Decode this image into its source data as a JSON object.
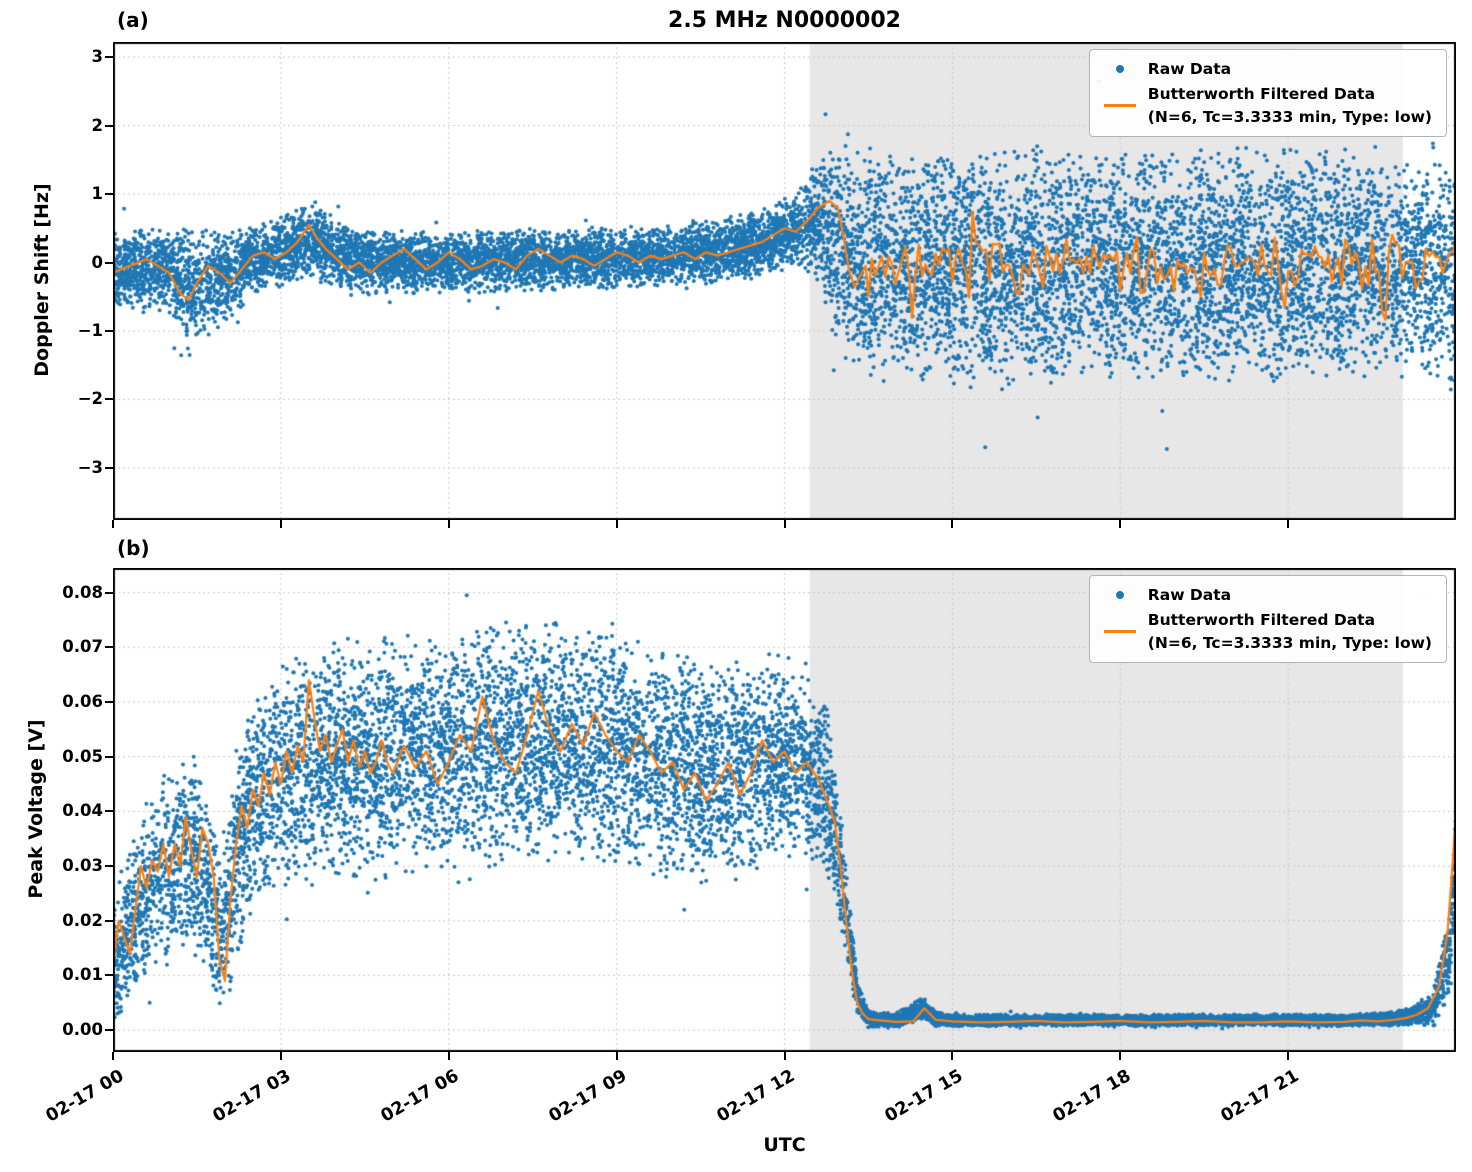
{
  "figure": {
    "title": "2.5 MHz N0000002",
    "panel_a_tag": "(a)",
    "panel_b_tag": "(b)"
  },
  "legend": {
    "raw_label": "Raw Data",
    "filtered_label": "Butterworth Filtered Data",
    "filtered_sublabel": "(N=6, Tc=3.3333 min, Type: low)"
  },
  "colors": {
    "raw": "#1f77b4",
    "filtered": "#ff7f0e",
    "shade": "#e7e7e7",
    "grid": "#c9c9c9",
    "axis": "#000000"
  },
  "chart_data": [
    {
      "type": "scatter+line",
      "panel": "a",
      "ylabel": "Doppler Shift [Hz]",
      "xlim": [
        0,
        24
      ],
      "ylim": [
        -3.76,
        3.22
      ],
      "yticks": [
        -3,
        -2,
        -1,
        0,
        1,
        2,
        3
      ],
      "ytick_labels": [
        "−3",
        "−2",
        "−1",
        "0",
        "1",
        "2",
        "3"
      ],
      "xticks": [
        0,
        3,
        6,
        9,
        12,
        15,
        18,
        21
      ],
      "shaded_region_hours": [
        12.45,
        23.05
      ],
      "grid": "dotted",
      "legend_position": "upper right",
      "series": [
        {
          "name": "Raw Data",
          "type": "scatter",
          "color": "#1f77b4",
          "seed": 42,
          "n_points": 12000,
          "outlier_frac": 0.025,
          "outlier_scale": 1.1,
          "envelope": {
            "x": [
              0,
              1.0,
              1.35,
              2.0,
              2.6,
              3.5,
              4.5,
              6,
              8,
              10,
              11.5,
              12.2,
              12.6,
              12.9,
              13.2,
              14,
              16,
              18,
              20,
              22,
              23,
              23.5,
              24
            ],
            "center": [
              -0.1,
              -0.1,
              -0.35,
              -0.2,
              0.05,
              0.3,
              0.0,
              0.0,
              0.05,
              0.1,
              0.25,
              0.5,
              0.65,
              0.3,
              0.0,
              -0.05,
              -0.05,
              -0.05,
              -0.05,
              -0.05,
              -0.05,
              -0.1,
              -0.2
            ],
            "halfwidth": [
              0.5,
              0.55,
              0.75,
              0.6,
              0.45,
              0.5,
              0.42,
              0.4,
              0.42,
              0.4,
              0.45,
              0.5,
              0.8,
              1.3,
              1.5,
              1.55,
              1.55,
              1.55,
              1.55,
              1.55,
              1.5,
              1.4,
              1.5
            ]
          }
        },
        {
          "name": "Butterworth Filtered Data (N=6, Tc=3.3333 min, Type: low)",
          "type": "line",
          "color": "#ff7f0e",
          "seed": 7,
          "line_x": [
            0,
            0.2,
            0.4,
            0.6,
            0.8,
            1.0,
            1.2,
            1.35,
            1.5,
            1.7,
            1.9,
            2.1,
            2.3,
            2.5,
            2.7,
            2.9,
            3.1,
            3.3,
            3.5,
            3.65,
            3.8,
            4.0,
            4.2,
            4.4,
            4.6,
            4.8,
            5.0,
            5.2,
            5.4,
            5.6,
            5.8,
            6.0,
            6.2,
            6.4,
            6.6,
            6.8,
            7.0,
            7.2,
            7.4,
            7.6,
            7.8,
            8.0,
            8.2,
            8.4,
            8.6,
            8.8,
            9.0,
            9.2,
            9.4,
            9.6,
            9.8,
            10.0,
            10.2,
            10.4,
            10.6,
            10.8,
            11.0,
            11.2,
            11.4,
            11.6,
            11.8,
            12.0,
            12.2,
            12.4,
            12.6,
            12.8,
            12.95,
            13.05,
            13.15,
            13.25,
            13.35,
            13.45
          ],
          "line_y": [
            -0.15,
            -0.08,
            -0.02,
            0.05,
            -0.05,
            -0.15,
            -0.45,
            -0.55,
            -0.3,
            -0.05,
            -0.15,
            -0.3,
            -0.1,
            0.1,
            0.15,
            0.05,
            0.15,
            0.3,
            0.55,
            0.35,
            0.2,
            0.05,
            -0.1,
            0.0,
            -0.15,
            0.0,
            0.1,
            0.2,
            0.05,
            -0.1,
            0.0,
            0.15,
            0.05,
            -0.1,
            -0.05,
            0.05,
            0.0,
            -0.1,
            0.1,
            0.2,
            0.1,
            0.0,
            0.1,
            0.05,
            -0.05,
            0.05,
            0.15,
            0.1,
            0.0,
            0.1,
            0.05,
            0.1,
            0.15,
            0.05,
            0.15,
            0.1,
            0.15,
            0.2,
            0.25,
            0.3,
            0.4,
            0.5,
            0.45,
            0.6,
            0.8,
            0.9,
            0.8,
            0.4,
            -0.1,
            -0.35,
            -0.2,
            -0.05
          ],
          "noisy_tail": {
            "from": 13.5,
            "to": 24,
            "step": 0.06,
            "mean": -0.05,
            "amp": 0.3,
            "spike_prob": 0.05,
            "spike_amp": 0.55
          }
        }
      ]
    },
    {
      "type": "scatter+line",
      "panel": "b",
      "ylabel": "Peak Voltage [V]",
      "xlabel": "UTC",
      "xlim": [
        0,
        24
      ],
      "ylim": [
        -0.004,
        0.0845
      ],
      "yticks": [
        0,
        0.01,
        0.02,
        0.03,
        0.04,
        0.05,
        0.06,
        0.07,
        0.08
      ],
      "ytick_labels": [
        "0.00",
        "0.01",
        "0.02",
        "0.03",
        "0.04",
        "0.05",
        "0.06",
        "0.07",
        "0.08"
      ],
      "xticks": [
        0,
        3,
        6,
        9,
        12,
        15,
        18,
        21
      ],
      "xtick_labels": [
        "02-17 00",
        "02-17 03",
        "02-17 06",
        "02-17 09",
        "02-17 12",
        "02-17 15",
        "02-17 18",
        "02-17 21"
      ],
      "shaded_region_hours": [
        12.45,
        23.05
      ],
      "grid": "dotted",
      "legend_position": "upper right",
      "series": [
        {
          "name": "Raw Data",
          "type": "scatter",
          "color": "#1f77b4",
          "seed": 11,
          "n_points": 12000,
          "outlier_frac": 0.04,
          "outlier_scale": 0.6,
          "clamp": [
            0.0003,
            0.0795
          ],
          "envelope": {
            "x": [
              0,
              0.3,
              0.7,
              1.0,
              1.5,
              1.9,
              2.1,
              2.5,
              3.0,
              4,
              5,
              6,
              7,
              8,
              9,
              10,
              11,
              12,
              12.5,
              12.8,
              13.0,
              13.15,
              13.3,
              13.5,
              14,
              14.5,
              14.7,
              15,
              16,
              18,
              20,
              22,
              22.8,
              23.2,
              23.6,
              23.9,
              24
            ],
            "center": [
              0.012,
              0.018,
              0.028,
              0.03,
              0.032,
              0.018,
              0.025,
              0.042,
              0.046,
              0.05,
              0.05,
              0.051,
              0.052,
              0.053,
              0.052,
              0.048,
              0.047,
              0.05,
              0.048,
              0.042,
              0.03,
              0.018,
              0.006,
              0.002,
              0.0018,
              0.004,
              0.002,
              0.0018,
              0.0018,
              0.0018,
              0.0018,
              0.0018,
              0.002,
              0.0025,
              0.004,
              0.015,
              0.035
            ],
            "halfwidth": [
              0.01,
              0.013,
              0.016,
              0.016,
              0.017,
              0.013,
              0.016,
              0.018,
              0.019,
              0.02,
              0.02,
              0.02,
              0.02,
              0.02,
              0.02,
              0.019,
              0.018,
              0.017,
              0.016,
              0.014,
              0.01,
              0.007,
              0.003,
              0.0015,
              0.0012,
              0.002,
              0.0012,
              0.001,
              0.001,
              0.001,
              0.001,
              0.001,
              0.0012,
              0.0015,
              0.003,
              0.008,
              0.01
            ]
          }
        },
        {
          "name": "Butterworth Filtered Data (N=6, Tc=3.3333 min, Type: low)",
          "type": "line",
          "color": "#ff7f0e",
          "seed": 13,
          "line_x": [
            0,
            0.1,
            0.2,
            0.3,
            0.4,
            0.5,
            0.6,
            0.7,
            0.8,
            0.9,
            1.0,
            1.1,
            1.2,
            1.3,
            1.4,
            1.5,
            1.6,
            1.7,
            1.8,
            1.9,
            2.0,
            2.1,
            2.2,
            2.3,
            2.4,
            2.5,
            2.6,
            2.7,
            2.8,
            2.9,
            3.0,
            3.1,
            3.2,
            3.3,
            3.4,
            3.5,
            3.6,
            3.7,
            3.8,
            3.9,
            4.0,
            4.1,
            4.2,
            4.3,
            4.4,
            4.5,
            4.6,
            4.7,
            4.8,
            4.9,
            5.0,
            5.2,
            5.4,
            5.6,
            5.8,
            6.0,
            6.2,
            6.4,
            6.6,
            6.8,
            7.0,
            7.2,
            7.4,
            7.6,
            7.8,
            8.0,
            8.2,
            8.4,
            8.6,
            8.8,
            9.0,
            9.2,
            9.4,
            9.6,
            9.8,
            10.0,
            10.2,
            10.4,
            10.6,
            10.8,
            11.0,
            11.2,
            11.4,
            11.6,
            11.8,
            12.0,
            12.2,
            12.4,
            12.6,
            12.8,
            12.9,
            13.0,
            13.1,
            13.2,
            13.3,
            13.4,
            13.5,
            13.7,
            14.0,
            14.3,
            14.5,
            14.7,
            15.0,
            15.5,
            16.0,
            16.5,
            17.0,
            17.5,
            18.0,
            18.5,
            19.0,
            19.5,
            20.0,
            20.5,
            21.0,
            21.5,
            22.0,
            22.3,
            22.6,
            22.9,
            23.1,
            23.3,
            23.5,
            23.7,
            23.85,
            23.95,
            24.0
          ],
          "line_y": [
            0.012,
            0.02,
            0.017,
            0.014,
            0.022,
            0.03,
            0.026,
            0.031,
            0.029,
            0.034,
            0.028,
            0.034,
            0.03,
            0.039,
            0.033,
            0.028,
            0.037,
            0.034,
            0.028,
            0.013,
            0.009,
            0.024,
            0.034,
            0.041,
            0.037,
            0.044,
            0.041,
            0.047,
            0.043,
            0.049,
            0.045,
            0.051,
            0.047,
            0.052,
            0.049,
            0.064,
            0.057,
            0.051,
            0.054,
            0.049,
            0.052,
            0.055,
            0.049,
            0.053,
            0.048,
            0.051,
            0.047,
            0.049,
            0.053,
            0.049,
            0.047,
            0.052,
            0.048,
            0.051,
            0.045,
            0.049,
            0.054,
            0.051,
            0.061,
            0.053,
            0.049,
            0.047,
            0.054,
            0.062,
            0.055,
            0.051,
            0.056,
            0.052,
            0.058,
            0.054,
            0.051,
            0.049,
            0.054,
            0.051,
            0.047,
            0.049,
            0.044,
            0.047,
            0.042,
            0.045,
            0.049,
            0.043,
            0.047,
            0.053,
            0.049,
            0.051,
            0.047,
            0.049,
            0.046,
            0.041,
            0.038,
            0.03,
            0.02,
            0.011,
            0.005,
            0.003,
            0.002,
            0.0018,
            0.0015,
            0.0016,
            0.004,
            0.0019,
            0.0016,
            0.0014,
            0.0015,
            0.0017,
            0.0014,
            0.0015,
            0.0017,
            0.0014,
            0.0015,
            0.0017,
            0.0014,
            0.0014,
            0.0016,
            0.0014,
            0.0015,
            0.0018,
            0.0016,
            0.0019,
            0.0022,
            0.0028,
            0.004,
            0.008,
            0.018,
            0.032,
            0.04
          ]
        }
      ]
    }
  ]
}
